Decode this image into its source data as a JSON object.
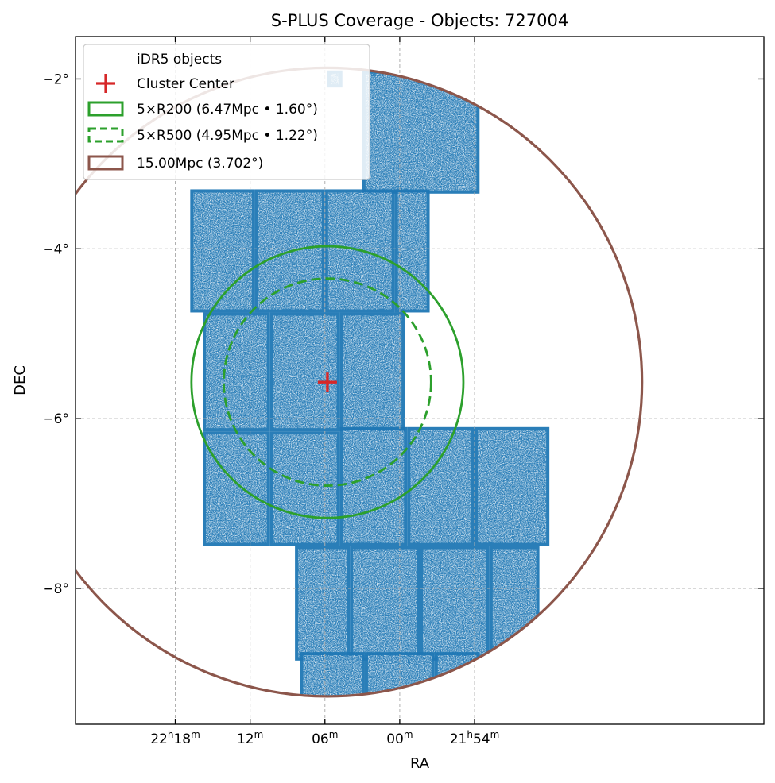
{
  "chart_data": {
    "type": "scatter",
    "title": "S-PLUS Coverage - Objects: 727004",
    "xlabel": "RA",
    "ylabel": "DEC",
    "x_axis_inverted": true,
    "xlim_deg": [
      336.5,
      322.7
    ],
    "ylim_deg": [
      -9.6,
      -1.5
    ],
    "grid": true,
    "grid_style": "dashed",
    "legend_position": "upper-left",
    "x_ticks": [
      {
        "value": 334.5,
        "hours": "22",
        "h": "h",
        "minutes": "18",
        "m": "m"
      },
      {
        "value": 333.0,
        "hours": "",
        "h": "",
        "minutes": "12",
        "m": "m"
      },
      {
        "value": 331.5,
        "hours": "",
        "h": "",
        "minutes": "06",
        "m": "m"
      },
      {
        "value": 330.0,
        "hours": "",
        "h": "",
        "minutes": "00",
        "m": "m"
      },
      {
        "value": 328.5,
        "hours": "21",
        "h": "h",
        "minutes": "54",
        "m": "m"
      }
    ],
    "y_ticks": [
      {
        "value": -2,
        "label": "−2°"
      },
      {
        "value": -4,
        "label": "−4°"
      },
      {
        "value": -6,
        "label": "−6°"
      },
      {
        "value": -8,
        "label": "−8°"
      }
    ],
    "cluster_center": {
      "ra": 331.45,
      "dec": -5.57
    },
    "series": [
      {
        "name": "iDR5 objects",
        "kind": "points",
        "color": "#1f77b4",
        "count": 727004
      },
      {
        "name": "Cluster Center",
        "kind": "marker",
        "marker": "+",
        "color": "#d62728"
      },
      {
        "name": "5×R200 (6.47Mpc • 1.60°)",
        "kind": "circle",
        "radius_deg": 1.6,
        "color": "#2ca02c",
        "linestyle": "solid"
      },
      {
        "name": "5×R500 (4.95Mpc • 1.22°)",
        "kind": "circle",
        "radius_deg": 1.22,
        "color": "#2ca02c",
        "linestyle": "dashed"
      },
      {
        "name": "15.00Mpc (3.702°)",
        "kind": "circle",
        "radius_deg": 3.702,
        "color": "#8c564b",
        "linestyle": "solid"
      }
    ],
    "tiles": [
      {
        "ra_min": 328.4,
        "ra_max": 330.75,
        "dec_min": -3.35,
        "dec_max": -1.9
      },
      {
        "ra_min": 331.15,
        "ra_max": 331.45,
        "dec_min": -2.1,
        "dec_max": -1.9
      },
      {
        "ra_min": 332.9,
        "ra_max": 334.2,
        "dec_min": -4.75,
        "dec_max": -3.3
      },
      {
        "ra_min": 331.5,
        "ra_max": 332.9,
        "dec_min": -4.75,
        "dec_max": -3.3
      },
      {
        "ra_min": 330.1,
        "ra_max": 331.5,
        "dec_min": -4.75,
        "dec_max": -3.3
      },
      {
        "ra_min": 329.4,
        "ra_max": 330.1,
        "dec_min": -4.75,
        "dec_max": -3.3
      },
      {
        "ra_min": 332.6,
        "ra_max": 333.95,
        "dec_min": -6.15,
        "dec_max": -4.75
      },
      {
        "ra_min": 331.2,
        "ra_max": 332.6,
        "dec_min": -6.15,
        "dec_max": -4.75
      },
      {
        "ra_min": 329.9,
        "ra_max": 331.2,
        "dec_min": -6.15,
        "dec_max": -4.75
      },
      {
        "ra_min": 332.6,
        "ra_max": 333.95,
        "dec_min": -7.5,
        "dec_max": -6.15
      },
      {
        "ra_min": 331.2,
        "ra_max": 332.6,
        "dec_min": -7.5,
        "dec_max": -6.15
      },
      {
        "ra_min": 329.85,
        "ra_max": 331.2,
        "dec_min": -7.5,
        "dec_max": -6.1
      },
      {
        "ra_min": 328.5,
        "ra_max": 329.85,
        "dec_min": -7.5,
        "dec_max": -6.1
      },
      {
        "ra_min": 327.0,
        "ra_max": 328.5,
        "dec_min": -7.5,
        "dec_max": -6.1
      },
      {
        "ra_min": 331.0,
        "ra_max": 332.1,
        "dec_min": -8.85,
        "dec_max": -7.5
      },
      {
        "ra_min": 329.6,
        "ra_max": 331.0,
        "dec_min": -8.85,
        "dec_max": -7.5
      },
      {
        "ra_min": 328.2,
        "ra_max": 329.6,
        "dec_min": -8.85,
        "dec_max": -7.5
      },
      {
        "ra_min": 327.2,
        "ra_max": 328.2,
        "dec_min": -8.85,
        "dec_max": -7.5
      },
      {
        "ra_min": 330.7,
        "ra_max": 332.0,
        "dec_min": -9.3,
        "dec_max": -8.75
      },
      {
        "ra_min": 329.3,
        "ra_max": 330.7,
        "dec_min": -9.3,
        "dec_max": -8.75
      },
      {
        "ra_min": 328.4,
        "ra_max": 329.3,
        "dec_min": -9.3,
        "dec_max": -8.75
      }
    ]
  }
}
